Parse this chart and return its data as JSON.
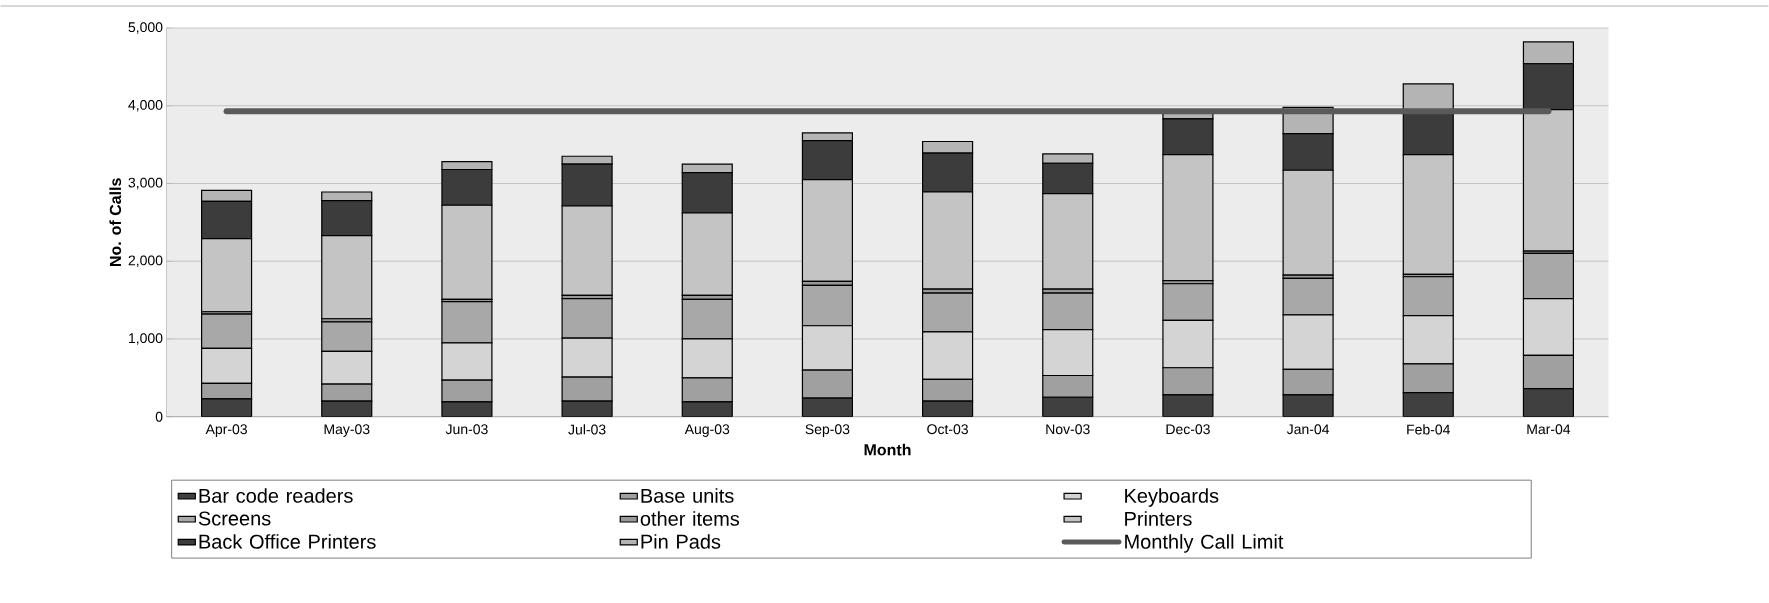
{
  "chart_data": {
    "type": "bar",
    "stacked": true,
    "xlabel": "Month",
    "ylabel": "No. of Calls",
    "categories": [
      "Apr-03",
      "May-03",
      "Jun-03",
      "Jul-03",
      "Aug-03",
      "Sep-03",
      "Oct-03",
      "Nov-03",
      "Dec-03",
      "Jan-04",
      "Feb-04",
      "Mar-04"
    ],
    "series": [
      {
        "name": "Bar code readers",
        "color": "#404040",
        "values": [
          230,
          200,
          190,
          200,
          190,
          240,
          200,
          250,
          280,
          280,
          310,
          360
        ]
      },
      {
        "name": "Base units",
        "color": "#a0a0a0",
        "values": [
          200,
          220,
          280,
          310,
          310,
          360,
          280,
          280,
          350,
          330,
          370,
          430
        ]
      },
      {
        "name": "Keyboards",
        "color": "#d4d4d4",
        "values": [
          450,
          420,
          480,
          500,
          500,
          570,
          610,
          590,
          610,
          700,
          620,
          730
        ]
      },
      {
        "name": "Screens",
        "color": "#a8a8a8",
        "values": [
          440,
          380,
          530,
          510,
          510,
          520,
          500,
          470,
          470,
          470,
          500,
          580
        ]
      },
      {
        "name": "other items",
        "color": "#989898",
        "values": [
          30,
          40,
          30,
          40,
          50,
          50,
          50,
          50,
          40,
          40,
          30,
          30
        ]
      },
      {
        "name": "Printers",
        "color": "#c4c4c4",
        "values": [
          940,
          1070,
          1210,
          1150,
          1060,
          1310,
          1250,
          1230,
          1620,
          1350,
          1540,
          1820
        ]
      },
      {
        "name": "Back Office Printers",
        "color": "#3c3c3c",
        "values": [
          480,
          450,
          460,
          540,
          520,
          500,
          500,
          390,
          460,
          470,
          560,
          590
        ]
      },
      {
        "name": "Pin Pads",
        "color": "#b4b4b4",
        "values": [
          140,
          110,
          100,
          100,
          110,
          100,
          150,
          120,
          70,
          340,
          350,
          280
        ]
      },
      {
        "name": "Monthly Call Limit",
        "type": "line",
        "color": "#5a5a5a",
        "values": [
          3930,
          3930,
          3930,
          3930,
          3930,
          3930,
          3930,
          3930,
          3930,
          3930,
          3930,
          3930
        ]
      }
    ],
    "ylim": [
      0,
      5000
    ],
    "yticks": [
      0,
      {
        "value": 1000,
        "label": "1,000"
      },
      {
        "value": 2000,
        "label": "2,000"
      },
      {
        "value": 3000,
        "label": "3,000"
      },
      {
        "value": 4000,
        "label": "4,000"
      },
      {
        "value": 5000,
        "label": "5,000"
      }
    ],
    "grid": "y",
    "legend": "bottom",
    "marker": "none",
    "line_style": "solid"
  }
}
